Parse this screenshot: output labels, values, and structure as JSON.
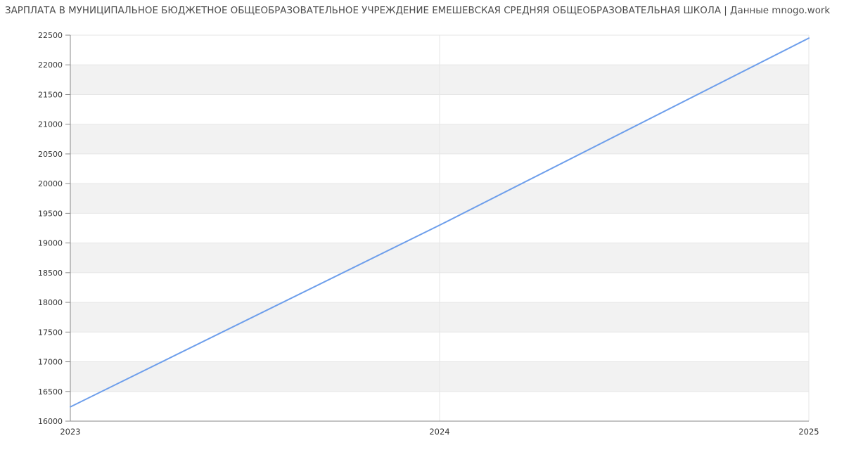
{
  "header": {
    "title": "ЗАРПЛАТА В МУНИЦИПАЛЬНОЕ БЮДЖЕТНОЕ ОБЩЕОБРАЗОВАТЕЛЬНОЕ УЧРЕЖДЕНИЕ ЕМЕШЕВСКАЯ СРЕДНЯЯ ОБЩЕОБРАЗОВАТЕЛЬНАЯ ШКОЛА | Данные mnogo.work"
  },
  "chart_data": {
    "type": "line",
    "title": "ЗАРПЛАТА В МУНИЦИПАЛЬНОЕ БЮДЖЕТНОЕ ОБЩЕОБРАЗОВАТЕЛЬНОЕ УЧРЕЖДЕНИЕ ЕМЕШЕВСКАЯ СРЕДНЯЯ ОБЩЕОБРАЗОВАТЕЛЬНАЯ ШКОЛА",
    "source_note": "Данные mnogo.work",
    "x": [
      "2023",
      "2024",
      "2025"
    ],
    "values": [
      16240,
      19300,
      22450
    ],
    "xlabel": "",
    "ylabel": "",
    "ylim": [
      16000,
      22500
    ],
    "ytick_step": 500,
    "yticks": [
      16000,
      16500,
      17000,
      17500,
      18000,
      18500,
      19000,
      19500,
      20000,
      20500,
      21000,
      21500,
      22000,
      22500
    ],
    "grid": true,
    "legend": false,
    "band_fill_alternate": true,
    "colors": {
      "line": "#6d9eeb",
      "band": "#f2f2f2",
      "gridline": "#e6e6e6",
      "axis": "#888888",
      "tick_label": "#333333",
      "title": "#4d4d4d"
    }
  }
}
